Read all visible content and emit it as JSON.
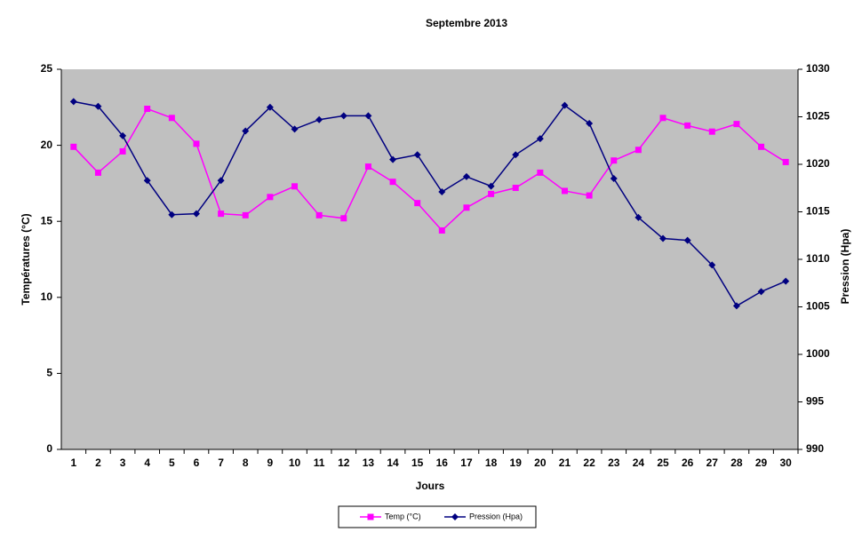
{
  "chart_data": {
    "type": "line",
    "title": "Septembre 2013",
    "x_label": "Jours",
    "y_label": "Températures (°C)",
    "y2_label": "Pression (Hpa)",
    "categories": [
      "1",
      "2",
      "3",
      "4",
      "5",
      "6",
      "7",
      "8",
      "9",
      "10",
      "11",
      "12",
      "13",
      "14",
      "15",
      "16",
      "17",
      "18",
      "19",
      "20",
      "21",
      "22",
      "23",
      "24",
      "25",
      "26",
      "27",
      "28",
      "29",
      "30"
    ],
    "ylim": [
      0,
      25
    ],
    "yticks": [
      0,
      5,
      10,
      15,
      20,
      25
    ],
    "y2lim": [
      990,
      1030
    ],
    "y2ticks": [
      990,
      995,
      1000,
      1005,
      1010,
      1015,
      1020,
      1025,
      1030
    ],
    "grid": false,
    "legend": "bottom",
    "series": [
      {
        "name": "Temp (°C)",
        "color": "#ff00ff",
        "marker": "square",
        "values": [
          19.9,
          18.2,
          19.6,
          22.4,
          21.8,
          20.1,
          15.5,
          15.4,
          16.6,
          17.3,
          15.4,
          15.2,
          18.6,
          17.6,
          16.2,
          14.4,
          15.9,
          16.8,
          17.2,
          18.2,
          17.0,
          16.7,
          19.0,
          19.7,
          21.8,
          21.3,
          20.9,
          21.4,
          19.9,
          18.9
        ]
      },
      {
        "name": "Pression (Hpa)",
        "color": "#000080",
        "marker": "diamond",
        "axis": "y2",
        "values": [
          1026.6,
          1026.1,
          1023.0,
          1018.3,
          1014.7,
          1014.8,
          1018.3,
          1023.5,
          1026.0,
          1023.7,
          1024.7,
          1025.1,
          1025.1,
          1020.5,
          1021.0,
          1017.1,
          1018.7,
          1017.7,
          1021.0,
          1022.7,
          1026.2,
          1024.3,
          1018.5,
          1014.4,
          1012.2,
          1012.0,
          1009.4,
          1005.1,
          1006.6,
          1007.7
        ]
      }
    ]
  }
}
